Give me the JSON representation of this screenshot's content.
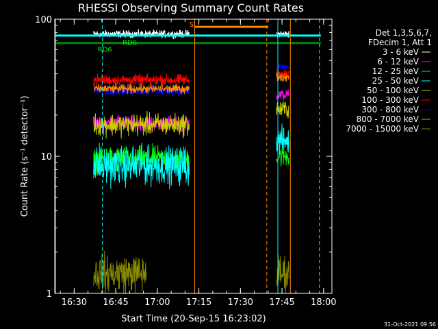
{
  "chart_data": {
    "type": "line",
    "title": "RHESSI Observing Summary Count Rates",
    "xlabel": "Start Time (20-Sep-15 16:23:02)",
    "ylabel": "Count Rate (s⁻¹ detector⁻¹)",
    "yscale": "log",
    "ylim": [
      1,
      100
    ],
    "xlim_minutes_after_1623": [
      0,
      100
    ],
    "x_ticks": [
      {
        "label": "16:30",
        "minute": 7
      },
      {
        "label": "16:45",
        "minute": 22
      },
      {
        "label": "17:00",
        "minute": 37
      },
      {
        "label": "17:15",
        "minute": 52
      },
      {
        "label": "17:30",
        "minute": 67
      },
      {
        "label": "17:45",
        "minute": 82
      },
      {
        "label": "18:00",
        "minute": 97
      }
    ],
    "y_ticks": [
      {
        "label": "1",
        "value": 1
      },
      {
        "label": "10",
        "value": 10
      },
      {
        "label": "100",
        "value": 100
      }
    ],
    "legend_header": [
      "Det 1,3,5,6,7,",
      "FDecim 1, Att 1"
    ],
    "legend_position": "right",
    "series": [
      {
        "name": "3 - 6 keV",
        "color": "#ffffff",
        "segments": [
          {
            "start": 14,
            "end": 48.5,
            "level": 78,
            "noise": 0.04
          },
          {
            "start": 80,
            "end": 84.5,
            "level": 78,
            "noise": 0.04
          }
        ]
      },
      {
        "name": "6 - 12 keV",
        "color": "#ff00ff",
        "segments": [
          {
            "start": 14,
            "end": 48.5,
            "level": 17.5,
            "noise": 0.08
          },
          {
            "start": 80,
            "end": 84.5,
            "level": 28,
            "noise": 0.06
          }
        ]
      },
      {
        "name": "12 - 25 keV",
        "color": "#00ff00",
        "segments": [
          {
            "start": 14,
            "end": 48.5,
            "level": 9.5,
            "noise": 0.14
          },
          {
            "start": 80,
            "end": 84.5,
            "level": 10,
            "noise": 0.12
          }
        ]
      },
      {
        "name": "25 - 50 keV",
        "color": "#00ffff",
        "segments": [
          {
            "start": 14,
            "end": 48.5,
            "level": 8.5,
            "noise": 0.2
          },
          {
            "start": 80,
            "end": 84.5,
            "level": 13,
            "noise": 0.15
          }
        ]
      },
      {
        "name": "50 - 100 keV",
        "color": "#cccc00",
        "segments": [
          {
            "start": 14,
            "end": 48.5,
            "level": 17,
            "noise": 0.12
          },
          {
            "start": 80,
            "end": 84.5,
            "level": 22,
            "noise": 0.1
          }
        ]
      },
      {
        "name": "100 - 300 keV",
        "color": "#ff0000",
        "segments": [
          {
            "start": 14,
            "end": 48.5,
            "level": 36,
            "noise": 0.06
          },
          {
            "start": 80,
            "end": 84.5,
            "level": 40,
            "noise": 0.05
          }
        ]
      },
      {
        "name": "300 - 800 keV",
        "color": "#0000ff",
        "segments": [
          {
            "start": 14,
            "end": 48.5,
            "level": 30,
            "noise": 0.05
          },
          {
            "start": 80,
            "end": 84.5,
            "level": 45,
            "noise": 0.05
          }
        ]
      },
      {
        "name": "800 - 7000 keV",
        "color": "#ff8800",
        "segments": [
          {
            "start": 14,
            "end": 48.5,
            "level": 31,
            "noise": 0.05
          },
          {
            "start": 80,
            "end": 84.5,
            "level": 38,
            "noise": 0.05
          }
        ]
      },
      {
        "name": "7000 - 15000 keV",
        "color": "#888800",
        "segments": [
          {
            "start": 14,
            "end": 33,
            "level": 1.4,
            "noise": 0.2
          },
          {
            "start": 80,
            "end": 84.5,
            "level": 1.4,
            "noise": 0.2
          }
        ]
      }
    ],
    "horizontal_bars": [
      {
        "color": "#00ffff",
        "value": 76,
        "from_minute": 0,
        "to_minute": 96
      },
      {
        "color": "#008800",
        "value": 67,
        "from_minute": 0,
        "to_minute": 96
      },
      {
        "color": "#ff8800",
        "value": 88,
        "from_minute": 50.5,
        "to_minute": 77
      }
    ],
    "annotations": [
      {
        "text": "RD6",
        "color": "#00ff00",
        "minute": 15.5,
        "value": 58
      },
      {
        "text": "RD6",
        "color": "#00ff00",
        "minute": 24.5,
        "value": 65
      },
      {
        "text": "S",
        "color": "#ff8800",
        "minute": 48.6,
        "value": 88
      }
    ],
    "vertical_lines": [
      {
        "minute": 0.3,
        "color": "#00ffff",
        "style": "solid"
      },
      {
        "minute": 17.2,
        "color": "#00ffff",
        "style": "dashed"
      },
      {
        "minute": 50.5,
        "color": "#ff8800",
        "style": "solid"
      },
      {
        "minute": 76.5,
        "color": "#ff8800",
        "style": "dashed"
      },
      {
        "minute": 80.5,
        "color": "#00ffff",
        "style": "solid"
      },
      {
        "minute": 85,
        "color": "#ff8800",
        "style": "solid"
      },
      {
        "minute": 95.5,
        "color": "#00ffff",
        "style": "dashed"
      }
    ]
  },
  "footer_timestamp": "31-Oct-2021 09:56"
}
